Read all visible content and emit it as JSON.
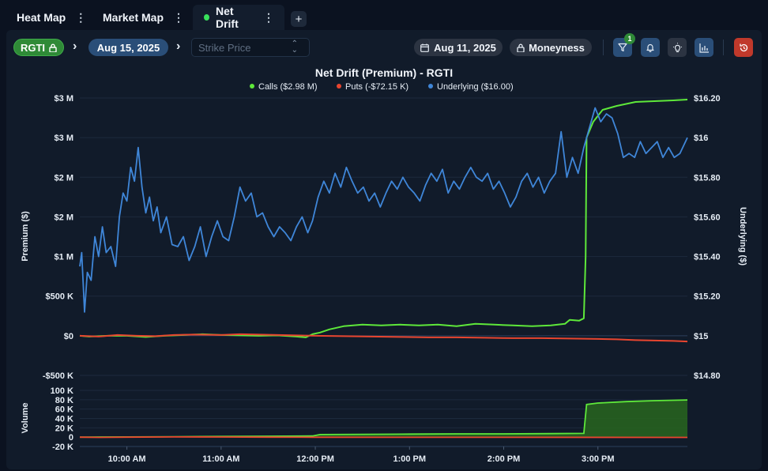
{
  "tabs": [
    {
      "label": "Heat Map",
      "active": false
    },
    {
      "label": "Market Map",
      "active": false
    },
    {
      "label": "Net Drift",
      "active": true
    }
  ],
  "toolbar": {
    "ticker": "RGTI",
    "expiration": "Aug 15, 2025",
    "strike_placeholder": "Strike Price",
    "trade_date": "Aug 11, 2025",
    "moneyness": "Moneyness",
    "filter_count": "1"
  },
  "colors": {
    "calls": "#5ee83a",
    "puts": "#e8452f",
    "underlying": "#3f86d8",
    "accent_green": "#2f8a37",
    "reset": "#c0392b"
  },
  "chart_data": [
    {
      "type": "line",
      "title": "Net Drift (Premium) - RGTI",
      "ylabel": "Premium ($)",
      "y2label": "Underlying ($)",
      "xlabel": "",
      "x_ticks": [
        "10:00 AM",
        "11:00 AM",
        "12:00 PM",
        "1:00 PM",
        "2:00 PM",
        "3:00 PM"
      ],
      "x_tick_times": [
        10,
        11,
        12,
        13,
        14,
        15
      ],
      "xlim": [
        9.5,
        15.95
      ],
      "ylim": [
        -500000,
        3000000
      ],
      "y_ticks": [
        {
          "v": 3000000,
          "label": "$3 M"
        },
        {
          "v": 2500000,
          "label": "$3 M"
        },
        {
          "v": 2000000,
          "label": "$2 M"
        },
        {
          "v": 1500000,
          "label": "$2 M"
        },
        {
          "v": 1000000,
          "label": "$1 M"
        },
        {
          "v": 500000,
          "label": "$500 K"
        },
        {
          "v": 0,
          "label": "$0"
        },
        {
          "v": -500000,
          "label": "-$500 K"
        }
      ],
      "y2lim": [
        14.8,
        16.2
      ],
      "y2_ticks": [
        {
          "v": 16.2,
          "label": "$16.20"
        },
        {
          "v": 16.0,
          "label": "$16"
        },
        {
          "v": 15.8,
          "label": "$15.80"
        },
        {
          "v": 15.6,
          "label": "$15.60"
        },
        {
          "v": 15.4,
          "label": "$15.40"
        },
        {
          "v": 15.2,
          "label": "$15.20"
        },
        {
          "v": 15.0,
          "label": "$15"
        },
        {
          "v": 14.8,
          "label": "$14.80"
        }
      ],
      "legend_position": "top-center",
      "grid": true,
      "series": [
        {
          "name": "Calls ($2.98 M)",
          "color": "#5ee83a",
          "axis": "left",
          "points": [
            [
              9.5,
              0
            ],
            [
              9.6,
              -10000
            ],
            [
              9.8,
              0
            ],
            [
              10.0,
              0
            ],
            [
              10.2,
              -15000
            ],
            [
              10.4,
              0
            ],
            [
              10.6,
              10000
            ],
            [
              10.8,
              20000
            ],
            [
              11.0,
              10000
            ],
            [
              11.2,
              5000
            ],
            [
              11.4,
              0
            ],
            [
              11.6,
              5000
            ],
            [
              11.8,
              -10000
            ],
            [
              11.9,
              -20000
            ],
            [
              11.97,
              20000
            ],
            [
              12.05,
              40000
            ],
            [
              12.15,
              80000
            ],
            [
              12.3,
              120000
            ],
            [
              12.5,
              140000
            ],
            [
              12.7,
              130000
            ],
            [
              12.9,
              140000
            ],
            [
              13.1,
              130000
            ],
            [
              13.3,
              140000
            ],
            [
              13.5,
              120000
            ],
            [
              13.7,
              150000
            ],
            [
              13.9,
              140000
            ],
            [
              14.1,
              130000
            ],
            [
              14.3,
              120000
            ],
            [
              14.5,
              130000
            ],
            [
              14.65,
              150000
            ],
            [
              14.7,
              200000
            ],
            [
              14.8,
              190000
            ],
            [
              14.85,
              220000
            ],
            [
              14.87,
              1000000
            ],
            [
              14.88,
              2500000
            ],
            [
              14.95,
              2700000
            ],
            [
              15.05,
              2850000
            ],
            [
              15.2,
              2900000
            ],
            [
              15.4,
              2950000
            ],
            [
              15.6,
              2960000
            ],
            [
              15.8,
              2970000
            ],
            [
              15.95,
              2980000
            ]
          ]
        },
        {
          "name": "Puts (-$72.15 K)",
          "color": "#e8452f",
          "axis": "left",
          "points": [
            [
              9.5,
              0
            ],
            [
              9.7,
              -10000
            ],
            [
              9.9,
              10000
            ],
            [
              10.1,
              0
            ],
            [
              10.3,
              -5000
            ],
            [
              10.5,
              10000
            ],
            [
              10.7,
              15000
            ],
            [
              11.0,
              10000
            ],
            [
              11.2,
              20000
            ],
            [
              11.4,
              15000
            ],
            [
              11.6,
              10000
            ],
            [
              11.8,
              5000
            ],
            [
              12.0,
              0
            ],
            [
              12.3,
              -5000
            ],
            [
              12.6,
              -10000
            ],
            [
              12.9,
              -15000
            ],
            [
              13.2,
              -20000
            ],
            [
              13.5,
              -20000
            ],
            [
              13.8,
              -25000
            ],
            [
              14.1,
              -30000
            ],
            [
              14.4,
              -30000
            ],
            [
              14.7,
              -35000
            ],
            [
              15.0,
              -40000
            ],
            [
              15.2,
              -45000
            ],
            [
              15.4,
              -55000
            ],
            [
              15.6,
              -60000
            ],
            [
              15.8,
              -65000
            ],
            [
              15.95,
              -72150
            ]
          ]
        },
        {
          "name": "Underlying ($16.00)",
          "color": "#3f86d8",
          "axis": "right",
          "points": [
            [
              9.5,
              15.35
            ],
            [
              9.52,
              15.42
            ],
            [
              9.55,
              15.12
            ],
            [
              9.58,
              15.32
            ],
            [
              9.62,
              15.28
            ],
            [
              9.66,
              15.5
            ],
            [
              9.7,
              15.4
            ],
            [
              9.74,
              15.55
            ],
            [
              9.78,
              15.42
            ],
            [
              9.83,
              15.45
            ],
            [
              9.88,
              15.35
            ],
            [
              9.92,
              15.6
            ],
            [
              9.96,
              15.72
            ],
            [
              10.0,
              15.68
            ],
            [
              10.04,
              15.85
            ],
            [
              10.08,
              15.78
            ],
            [
              10.12,
              15.95
            ],
            [
              10.16,
              15.75
            ],
            [
              10.2,
              15.62
            ],
            [
              10.24,
              15.7
            ],
            [
              10.28,
              15.58
            ],
            [
              10.32,
              15.65
            ],
            [
              10.36,
              15.52
            ],
            [
              10.42,
              15.6
            ],
            [
              10.48,
              15.46
            ],
            [
              10.54,
              15.45
            ],
            [
              10.6,
              15.5
            ],
            [
              10.66,
              15.38
            ],
            [
              10.72,
              15.45
            ],
            [
              10.78,
              15.55
            ],
            [
              10.84,
              15.4
            ],
            [
              10.9,
              15.5
            ],
            [
              10.96,
              15.58
            ],
            [
              11.02,
              15.5
            ],
            [
              11.08,
              15.48
            ],
            [
              11.14,
              15.6
            ],
            [
              11.2,
              15.75
            ],
            [
              11.26,
              15.68
            ],
            [
              11.32,
              15.72
            ],
            [
              11.38,
              15.6
            ],
            [
              11.44,
              15.62
            ],
            [
              11.5,
              15.55
            ],
            [
              11.56,
              15.5
            ],
            [
              11.62,
              15.55
            ],
            [
              11.68,
              15.52
            ],
            [
              11.74,
              15.48
            ],
            [
              11.8,
              15.55
            ],
            [
              11.86,
              15.6
            ],
            [
              11.92,
              15.52
            ],
            [
              11.97,
              15.58
            ],
            [
              12.03,
              15.7
            ],
            [
              12.09,
              15.78
            ],
            [
              12.15,
              15.72
            ],
            [
              12.21,
              15.82
            ],
            [
              12.27,
              15.75
            ],
            [
              12.33,
              15.85
            ],
            [
              12.39,
              15.78
            ],
            [
              12.45,
              15.72
            ],
            [
              12.51,
              15.75
            ],
            [
              12.57,
              15.68
            ],
            [
              12.63,
              15.72
            ],
            [
              12.69,
              15.65
            ],
            [
              12.75,
              15.72
            ],
            [
              12.81,
              15.78
            ],
            [
              12.87,
              15.74
            ],
            [
              12.93,
              15.8
            ],
            [
              12.99,
              15.75
            ],
            [
              13.05,
              15.72
            ],
            [
              13.11,
              15.68
            ],
            [
              13.17,
              15.76
            ],
            [
              13.23,
              15.82
            ],
            [
              13.29,
              15.78
            ],
            [
              13.35,
              15.84
            ],
            [
              13.41,
              15.72
            ],
            [
              13.47,
              15.78
            ],
            [
              13.53,
              15.74
            ],
            [
              13.59,
              15.8
            ],
            [
              13.65,
              15.85
            ],
            [
              13.71,
              15.8
            ],
            [
              13.77,
              15.78
            ],
            [
              13.83,
              15.82
            ],
            [
              13.89,
              15.74
            ],
            [
              13.95,
              15.78
            ],
            [
              14.01,
              15.72
            ],
            [
              14.07,
              15.65
            ],
            [
              14.13,
              15.7
            ],
            [
              14.19,
              15.78
            ],
            [
              14.25,
              15.82
            ],
            [
              14.31,
              15.75
            ],
            [
              14.37,
              15.8
            ],
            [
              14.43,
              15.72
            ],
            [
              14.49,
              15.78
            ],
            [
              14.55,
              15.82
            ],
            [
              14.61,
              16.03
            ],
            [
              14.67,
              15.8
            ],
            [
              14.73,
              15.9
            ],
            [
              14.79,
              15.82
            ],
            [
              14.85,
              15.95
            ],
            [
              14.91,
              16.05
            ],
            [
              14.97,
              16.15
            ],
            [
              15.03,
              16.08
            ],
            [
              15.09,
              16.12
            ],
            [
              15.15,
              16.1
            ],
            [
              15.21,
              16.02
            ],
            [
              15.27,
              15.9
            ],
            [
              15.33,
              15.92
            ],
            [
              15.39,
              15.9
            ],
            [
              15.45,
              15.98
            ],
            [
              15.51,
              15.92
            ],
            [
              15.57,
              15.95
            ],
            [
              15.63,
              15.98
            ],
            [
              15.69,
              15.9
            ],
            [
              15.75,
              15.95
            ],
            [
              15.81,
              15.9
            ],
            [
              15.87,
              15.92
            ],
            [
              15.95,
              16.0
            ]
          ]
        }
      ]
    },
    {
      "type": "area",
      "ylabel": "Volume",
      "xlabel": "",
      "xlim": [
        9.5,
        15.95
      ],
      "ylim": [
        -20000,
        100000
      ],
      "y_ticks": [
        {
          "v": 100000,
          "label": "100 K"
        },
        {
          "v": 80000,
          "label": "80 K"
        },
        {
          "v": 60000,
          "label": "60 K"
        },
        {
          "v": 40000,
          "label": "40 K"
        },
        {
          "v": 20000,
          "label": "20 K"
        },
        {
          "v": 0,
          "label": "0"
        },
        {
          "v": -20000,
          "label": "-20 K"
        }
      ],
      "series": [
        {
          "name": "Calls",
          "color": "#5ee83a",
          "fill": "#27621f",
          "points": [
            [
              9.5,
              0
            ],
            [
              10.0,
              500
            ],
            [
              10.5,
              1000
            ],
            [
              11.0,
              1500
            ],
            [
              11.5,
              2000
            ],
            [
              11.97,
              2500
            ],
            [
              12.05,
              5500
            ],
            [
              12.5,
              6000
            ],
            [
              13.0,
              6500
            ],
            [
              13.5,
              7000
            ],
            [
              14.0,
              7000
            ],
            [
              14.5,
              7500
            ],
            [
              14.85,
              8000
            ],
            [
              14.88,
              70000
            ],
            [
              15.0,
              73000
            ],
            [
              15.3,
              76000
            ],
            [
              15.6,
              78000
            ],
            [
              15.95,
              79500
            ]
          ]
        },
        {
          "name": "Puts",
          "color": "#e8452f",
          "fill": "none",
          "points": [
            [
              9.5,
              0
            ],
            [
              9.7,
              -500
            ],
            [
              10.0,
              0
            ],
            [
              10.5,
              500
            ],
            [
              11.0,
              300
            ],
            [
              11.5,
              0
            ],
            [
              12.0,
              -300
            ],
            [
              15.95,
              -500
            ]
          ]
        }
      ]
    }
  ]
}
